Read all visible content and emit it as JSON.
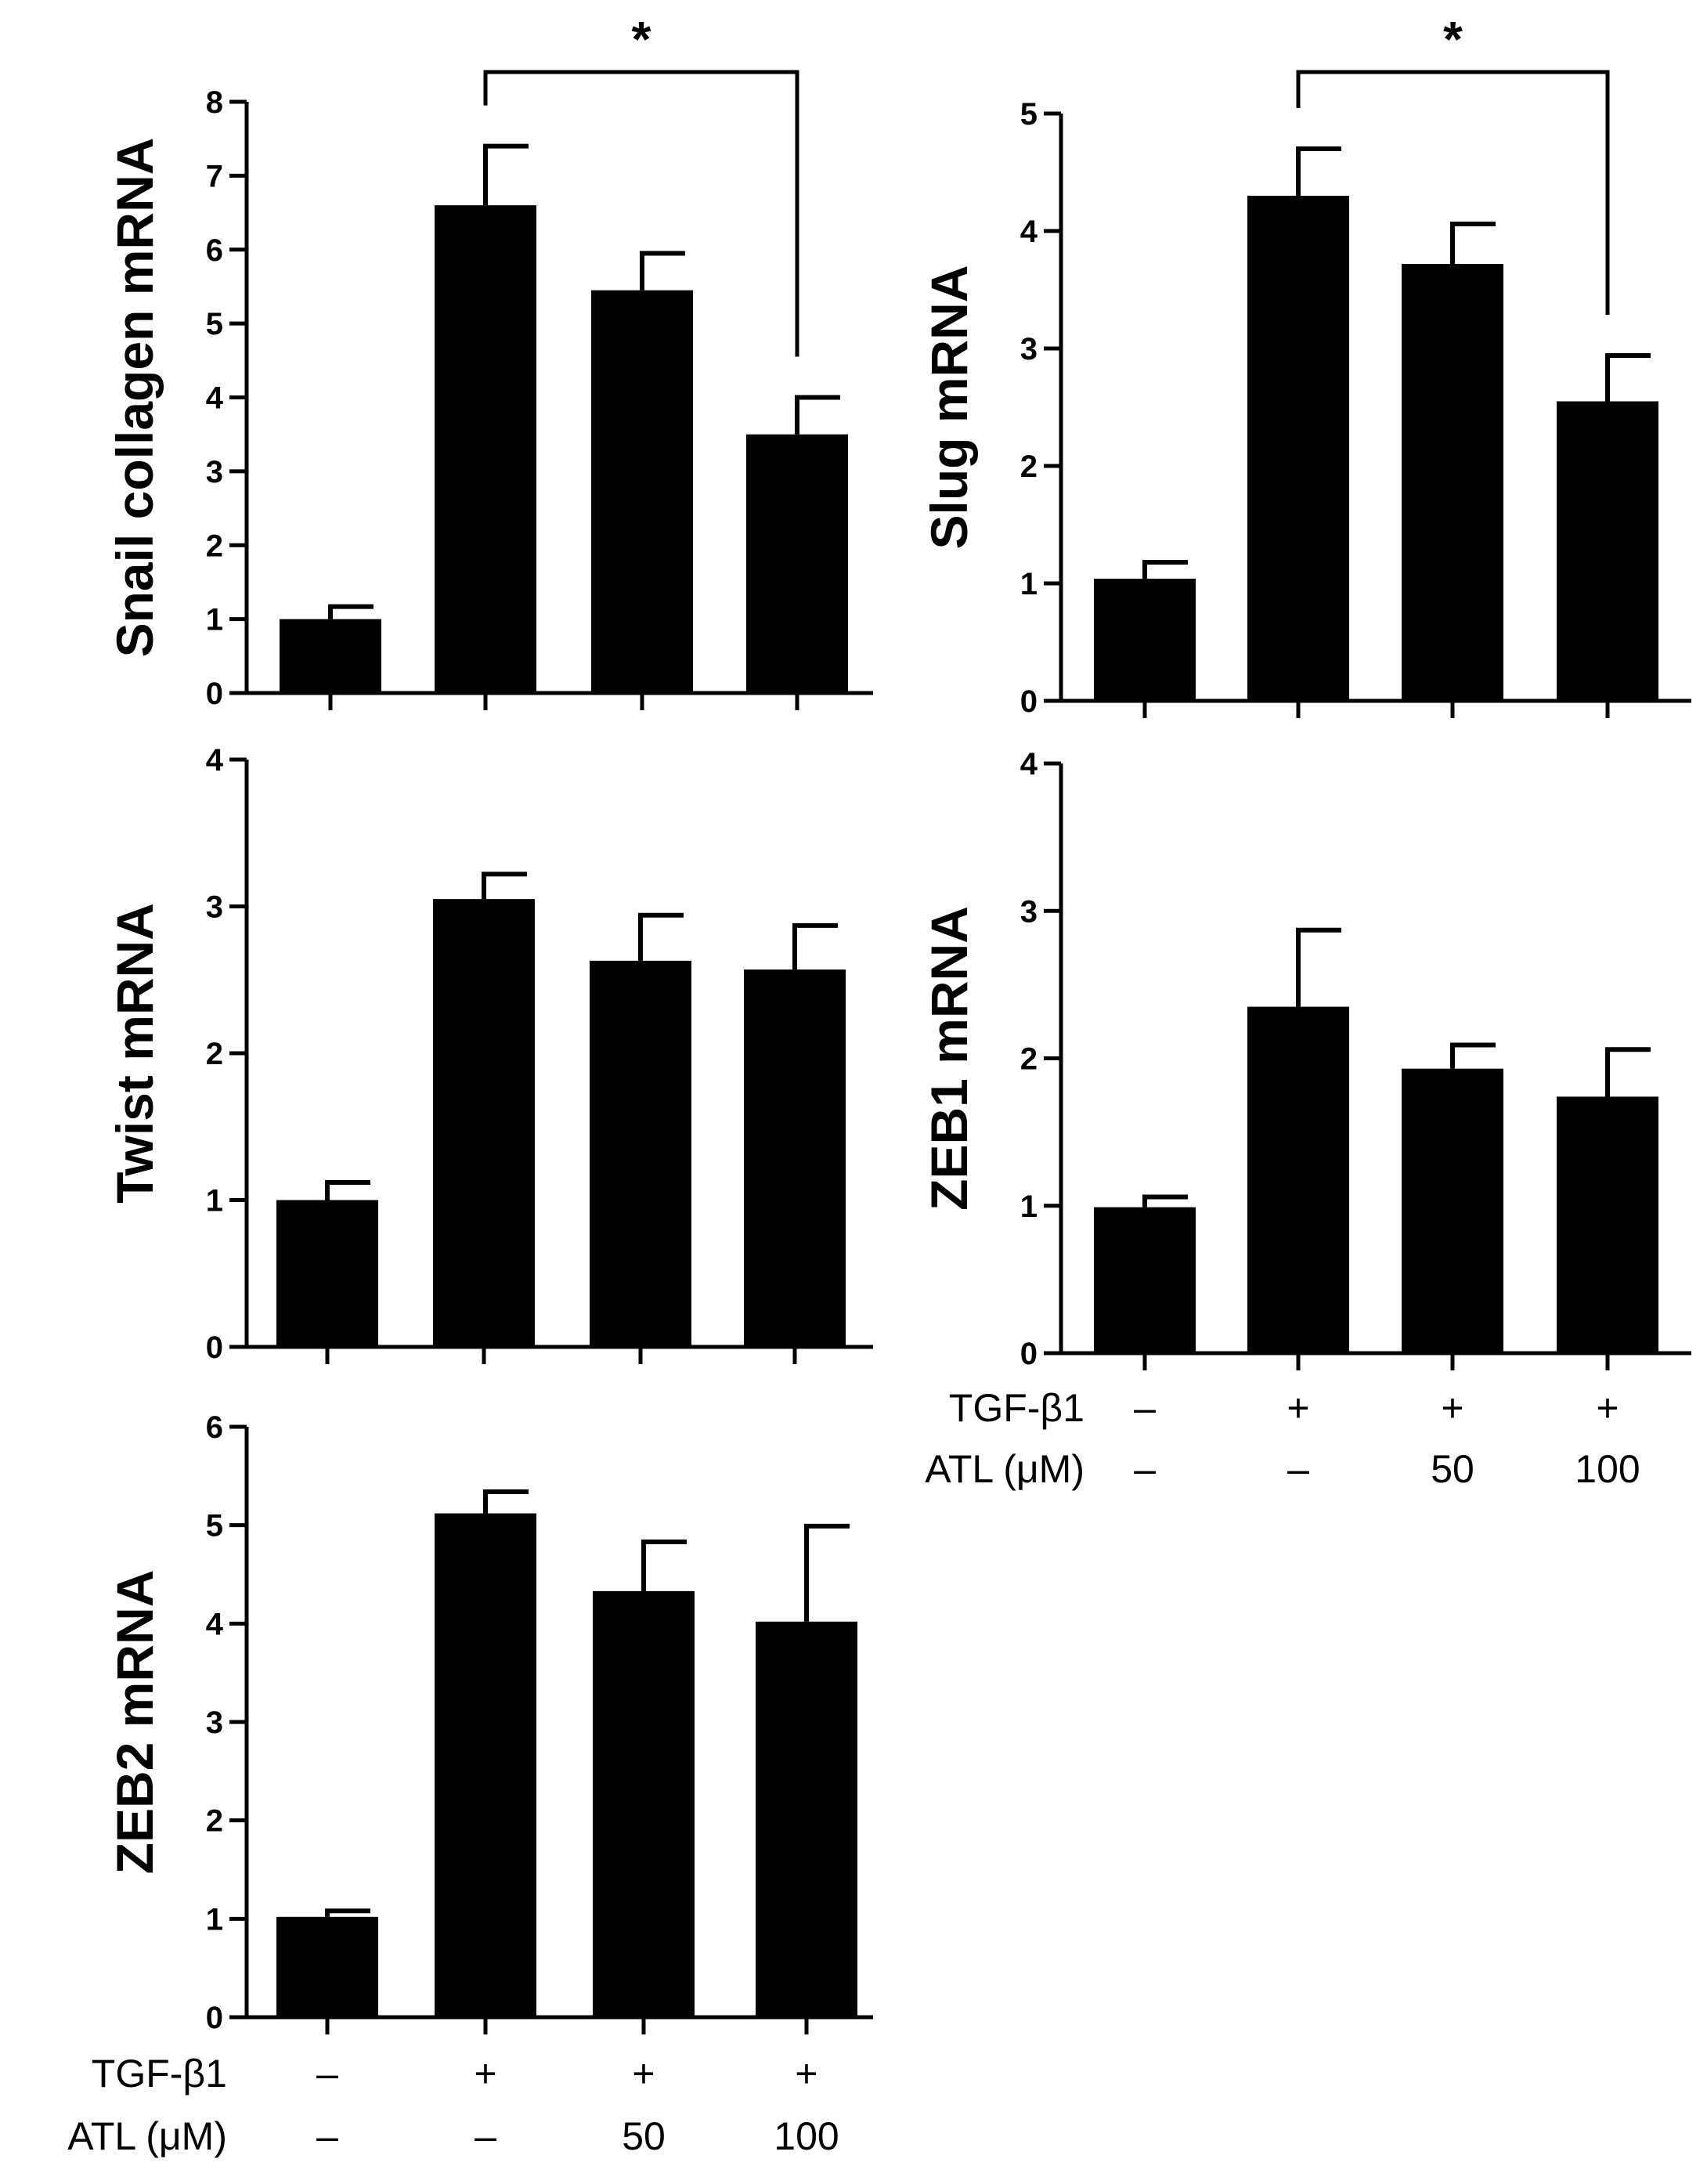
{
  "chart_data": [
    {
      "type": "bar",
      "panel": "top-left",
      "ylabel": "Snail collagen mRNA",
      "xlabel": "",
      "ylim": [
        0,
        8
      ],
      "yticks": [
        "0",
        "1",
        "2",
        "3",
        "4",
        "5",
        "6",
        "7",
        "8"
      ],
      "categories": [
        "TGF-β1 − / ATL −",
        "TGF-β1 + / ATL −",
        "TGF-β1 + / ATL 50",
        "TGF-β1 + / ATL 100"
      ],
      "values": [
        1.0,
        6.6,
        5.45,
        3.5
      ],
      "errors": [
        0.17,
        0.8,
        0.5,
        0.5
      ],
      "significance": [
        {
          "from": 1,
          "to": 3,
          "label": "*"
        }
      ],
      "show_conditions": false
    },
    {
      "type": "bar",
      "panel": "top-right",
      "ylabel": "Slug mRNA",
      "xlabel": "",
      "ylim": [
        0,
        5
      ],
      "yticks": [
        "0",
        "1",
        "2",
        "3",
        "4",
        "5"
      ],
      "categories": [
        "TGF-β1 − / ATL −",
        "TGF-β1 + / ATL −",
        "TGF-β1 + / ATL 50",
        "TGF-β1 + / ATL 100"
      ],
      "values": [
        1.04,
        4.3,
        3.72,
        2.55
      ],
      "errors": [
        0.14,
        0.4,
        0.34,
        0.39
      ],
      "significance": [
        {
          "from": 1,
          "to": 3,
          "label": "*"
        }
      ],
      "show_conditions": false
    },
    {
      "type": "bar",
      "panel": "middle-left",
      "ylabel": "Twist mRNA",
      "xlabel": "",
      "ylim": [
        0,
        4
      ],
      "yticks": [
        "0",
        "1",
        "2",
        "3",
        "4"
      ],
      "categories": [
        "TGF-β1 − / ATL −",
        "TGF-β1 + / ATL −",
        "TGF-β1 + / ATL 50",
        "TGF-β1 + / ATL 100"
      ],
      "values": [
        1.0,
        3.05,
        2.63,
        2.57
      ],
      "errors": [
        0.12,
        0.17,
        0.31,
        0.3
      ],
      "significance": [],
      "show_conditions": false
    },
    {
      "type": "bar",
      "panel": "middle-right",
      "ylabel": "ZEB1 mRNA",
      "xlabel": "",
      "ylim": [
        0,
        4
      ],
      "yticks": [
        "0",
        "1",
        "2",
        "3",
        "4"
      ],
      "categories": [
        "TGF-β1 − / ATL −",
        "TGF-β1 + / ATL −",
        "TGF-β1 + / ATL 50",
        "TGF-β1 + / ATL 100"
      ],
      "values": [
        0.99,
        2.35,
        1.93,
        1.74
      ],
      "errors": [
        0.07,
        0.52,
        0.16,
        0.32
      ],
      "significance": [],
      "show_conditions": true
    },
    {
      "type": "bar",
      "panel": "bottom-left",
      "ylabel": "ZEB2 mRNA",
      "xlabel": "",
      "ylim": [
        0,
        6
      ],
      "yticks": [
        "0",
        "1",
        "2",
        "3",
        "4",
        "5",
        "6"
      ],
      "categories": [
        "TGF-β1 − / ATL −",
        "TGF-β1 + / ATL −",
        "TGF-β1 + / ATL 50",
        "TGF-β1 + / ATL 100"
      ],
      "values": [
        1.02,
        5.12,
        4.33,
        4.02
      ],
      "errors": [
        0.06,
        0.22,
        0.5,
        0.97
      ],
      "significance": [],
      "show_conditions": true
    }
  ],
  "conditions": {
    "tgf_label": "TGF-β1",
    "atl_label": "ATL (μM)",
    "tgf_values": [
      "–",
      "+",
      "+",
      "+"
    ],
    "atl_values": [
      "–",
      "–",
      "50",
      "100"
    ]
  },
  "colors": {
    "bar": "#000000",
    "axis": "#000000",
    "background": "#ffffff"
  }
}
